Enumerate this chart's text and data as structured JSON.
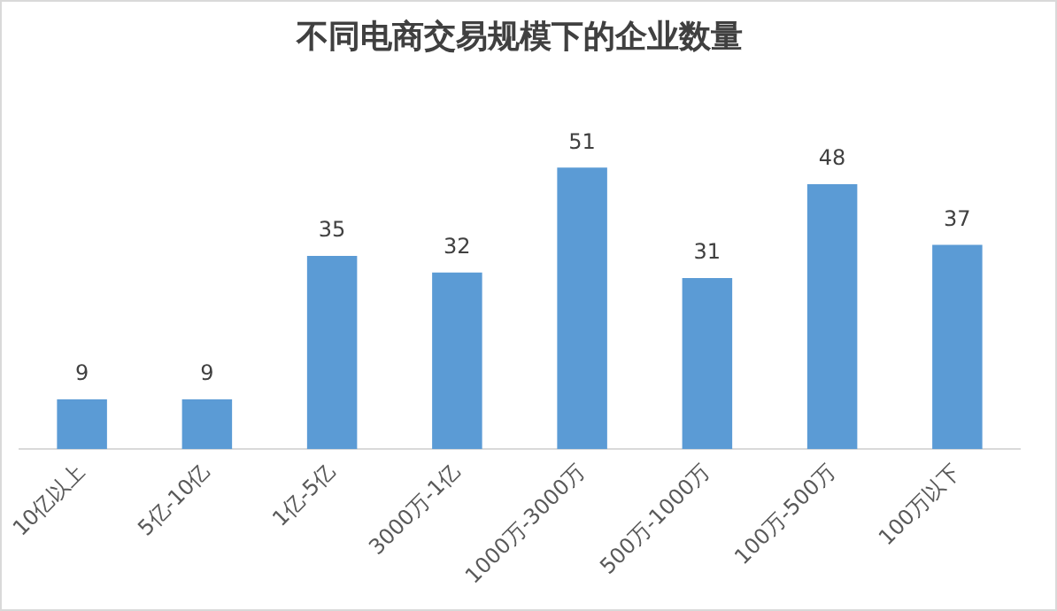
{
  "chart_data": {
    "type": "bar",
    "title": "不同电商交易规模下的企业数量",
    "categories": [
      "10亿以上",
      "5亿-10亿",
      "1亿-5亿",
      "3000万-1亿",
      "1000万-3000万",
      "500万-1000万",
      "100万-500万",
      "100万以下"
    ],
    "values": [
      9,
      9,
      35,
      32,
      51,
      31,
      48,
      37
    ],
    "color": "#5b9bd5",
    "data_labels": true,
    "grid": false,
    "legend": false
  }
}
